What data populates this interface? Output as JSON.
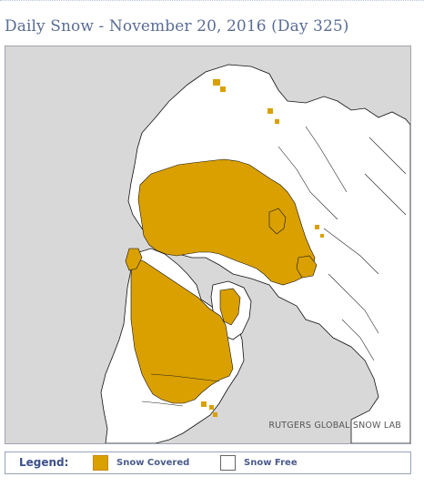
{
  "header": {
    "title": "Daily Snow - November 20, 2016 (Day 325)"
  },
  "map": {
    "credit": "RUTGERS GLOBAL SNOW LAB",
    "projection": "polar-stereographic-north",
    "ocean_color": "#d8d8d8",
    "land_color": "#ffffff",
    "snow_color": "#daa000",
    "border_color": "#000000"
  },
  "legend": {
    "title": "Legend:",
    "items": [
      {
        "label": "Snow Covered",
        "color": "#daa000"
      },
      {
        "label": "Snow Free",
        "color": "#ffffff"
      }
    ]
  }
}
